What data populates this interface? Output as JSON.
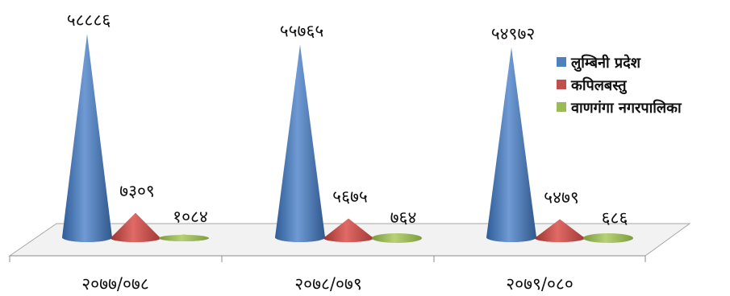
{
  "chart_data": {
    "type": "bar",
    "style": "3d-cone",
    "categories": [
      "२०७७/०७८",
      "२०७८/०७९",
      "२०७९/०८०"
    ],
    "series": [
      {
        "name": "लुम्बिनी प्रदेश",
        "color": "#4F81BD",
        "values": [
          58886,
          55765,
          54972
        ],
        "labels": [
          "५८८८६",
          "५५७६५",
          "५४९७२"
        ]
      },
      {
        "name": "कपिलबस्तु",
        "color": "#C0504D",
        "values": [
          7309,
          5675,
          5479
        ],
        "labels": [
          "७३०९",
          "५६७५",
          "५४७९"
        ]
      },
      {
        "name": "वाणगंगा नगरपालिका",
        "color": "#9BBB59",
        "values": [
          1084,
          764,
          686
        ],
        "labels": [
          "१०८४",
          "७६४",
          "६८६"
        ]
      }
    ],
    "legend_position": "right",
    "grid": false
  }
}
